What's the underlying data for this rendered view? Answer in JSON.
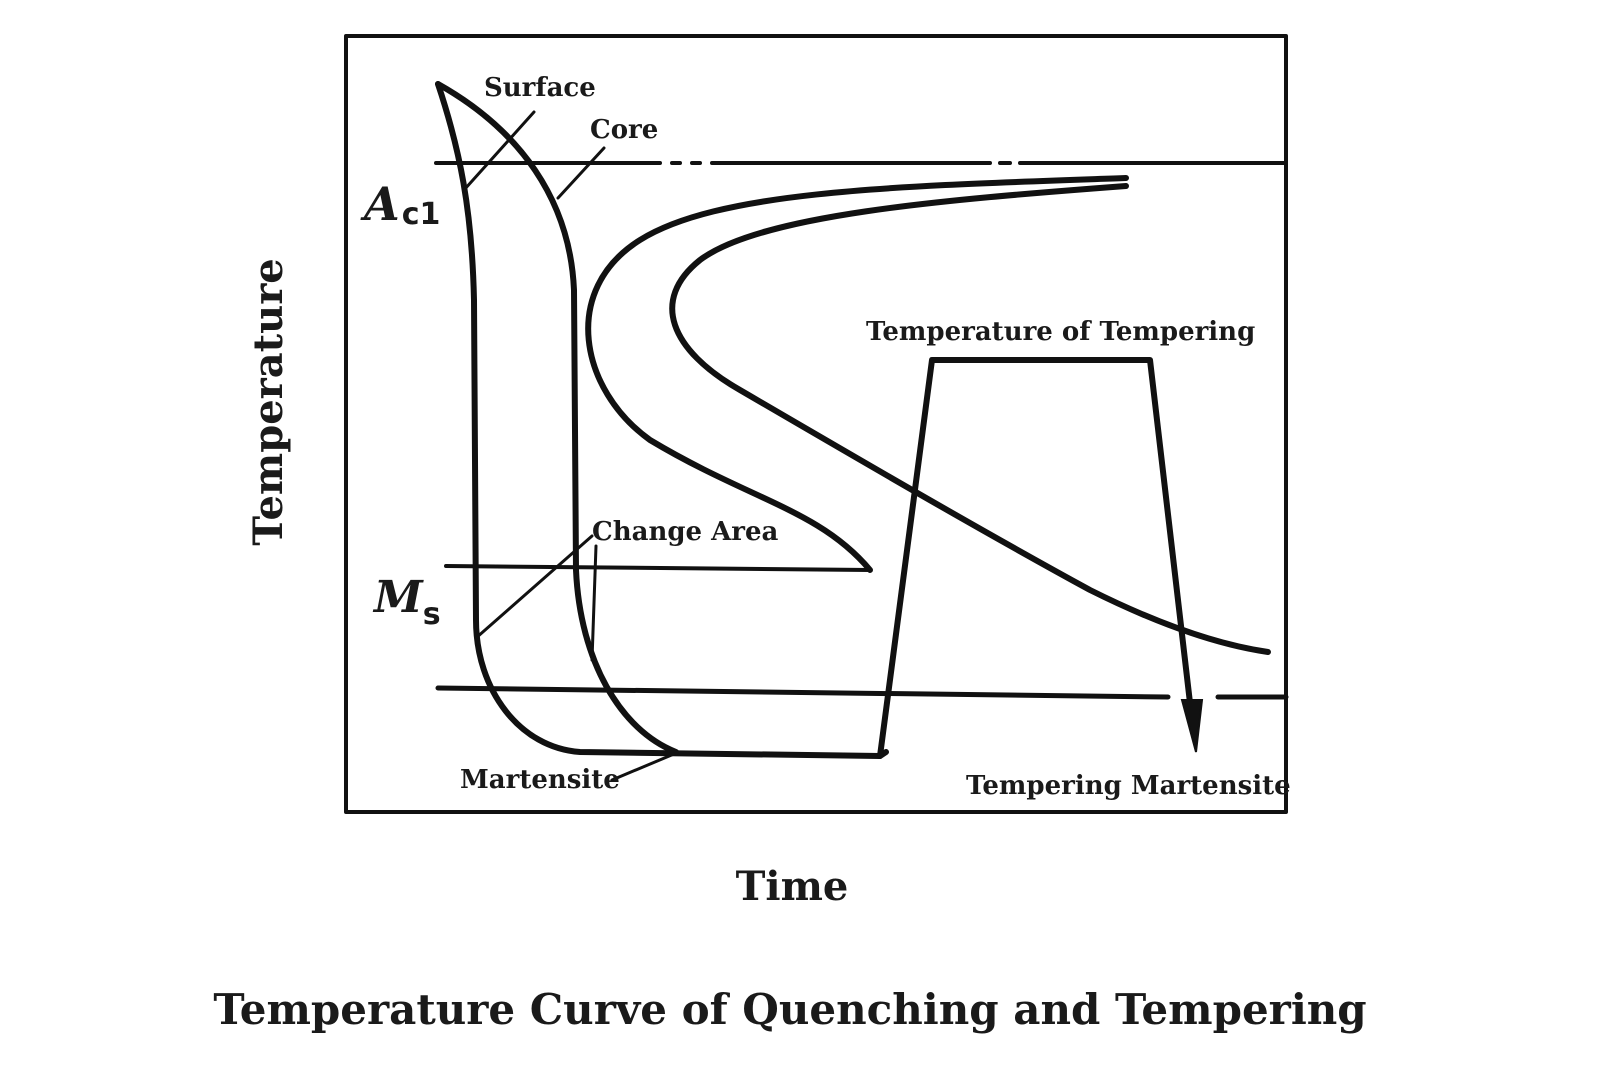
{
  "labels": {
    "surface": "Surface",
    "core": "Core",
    "acl_symbol": "A",
    "acl_sub": "c1",
    "ms_symbol": "M",
    "ms_sub": "s",
    "temperature_of_tempering": "Temperature of Tempering",
    "change_area": "Change Area",
    "martensite": "Martensite",
    "tempering_martensite": "Tempering Martensite"
  },
  "axes": {
    "y_label": "Temperature",
    "x_label": "Time"
  },
  "title": "Temperature Curve of Quenching and Tempering",
  "colors": {
    "ink": "#111111",
    "background": "#ffffff"
  }
}
